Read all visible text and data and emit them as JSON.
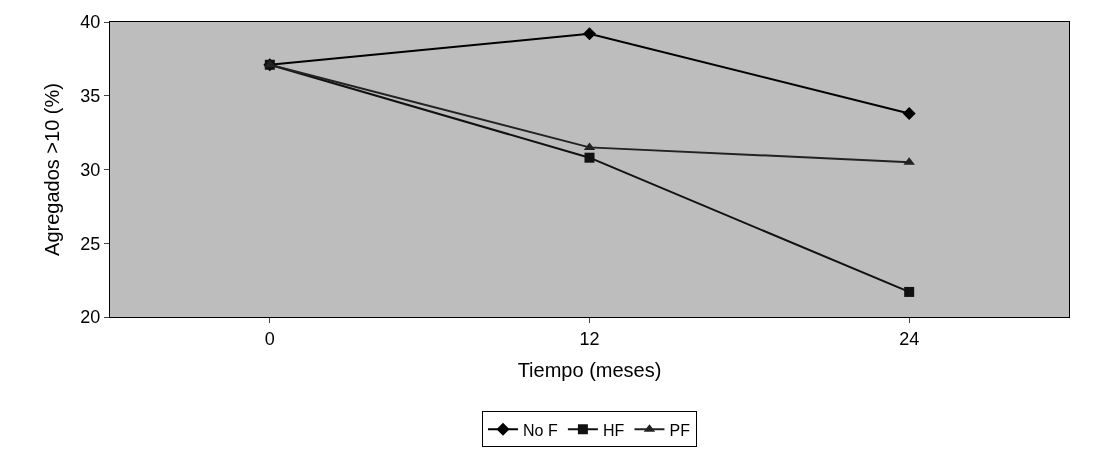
{
  "chart_data": {
    "type": "line",
    "xlabel": "Tiempo (meses)",
    "ylabel": "Agregados >10 (%)",
    "categories": [
      "0",
      "12",
      "24"
    ],
    "ylim": [
      20,
      40
    ],
    "yticks": [
      20,
      25,
      30,
      35,
      40
    ],
    "grid": false,
    "legend": "bottom",
    "series": [
      {
        "name": "No F",
        "color": "#000000",
        "marker": "diamond",
        "values": [
          37.1,
          39.2,
          33.8
        ]
      },
      {
        "name": "HF",
        "color": "#111111",
        "marker": "square",
        "values": [
          37.1,
          30.8,
          21.7
        ]
      },
      {
        "name": "PF",
        "color": "#222222",
        "marker": "triangle",
        "values": [
          37.1,
          31.5,
          30.5
        ]
      }
    ]
  }
}
